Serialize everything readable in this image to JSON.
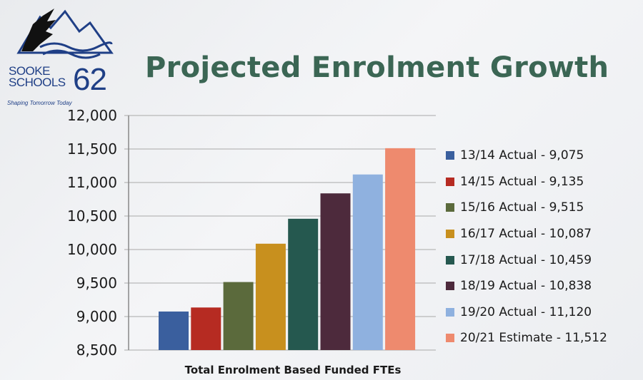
{
  "logo": {
    "word1": "SOOKE",
    "word2": "SCHOOLS",
    "number": "62",
    "tagline": "Shaping Tomorrow Today",
    "color": "#1f3f86"
  },
  "chart_data": {
    "type": "bar",
    "title": "Projected Enrolment Growth",
    "xlabel": "Total Enrolment Based Funded FTEs",
    "ylabel": "",
    "ylim": [
      8500,
      12000
    ],
    "yticks": [
      8500,
      9000,
      9500,
      10000,
      10500,
      11000,
      11500,
      12000
    ],
    "ytick_labels": [
      "8,500",
      "9,000",
      "9,500",
      "10,000",
      "10,500",
      "11,000",
      "11,500",
      "12,000"
    ],
    "grid": true,
    "legend_position": "right",
    "categories": [
      "13/14 Actual",
      "14/15 Actual",
      "15/16 Actual",
      "16/17 Actual",
      "17/18 Actual",
      "18/19 Actual",
      "19/20 Actual",
      "20/21 Estimate"
    ],
    "values": [
      9075,
      9135,
      9515,
      10087,
      10459,
      10838,
      11120,
      11512
    ],
    "legend": [
      "13/14 Actual - 9,075",
      "14/15 Actual - 9,135",
      "15/16 Actual - 9,515",
      "16/17 Actual - 10,087",
      "17/18 Actual - 10,459",
      "18/19 Actual - 10,838",
      "19/20 Actual - 11,120",
      "20/21 Estimate - 11,512"
    ],
    "colors": [
      "#3a5f9e",
      "#b62b22",
      "#5b6a3c",
      "#c8901e",
      "#25584f",
      "#4d2a3c",
      "#8fb1df",
      "#ee8a6e"
    ]
  }
}
